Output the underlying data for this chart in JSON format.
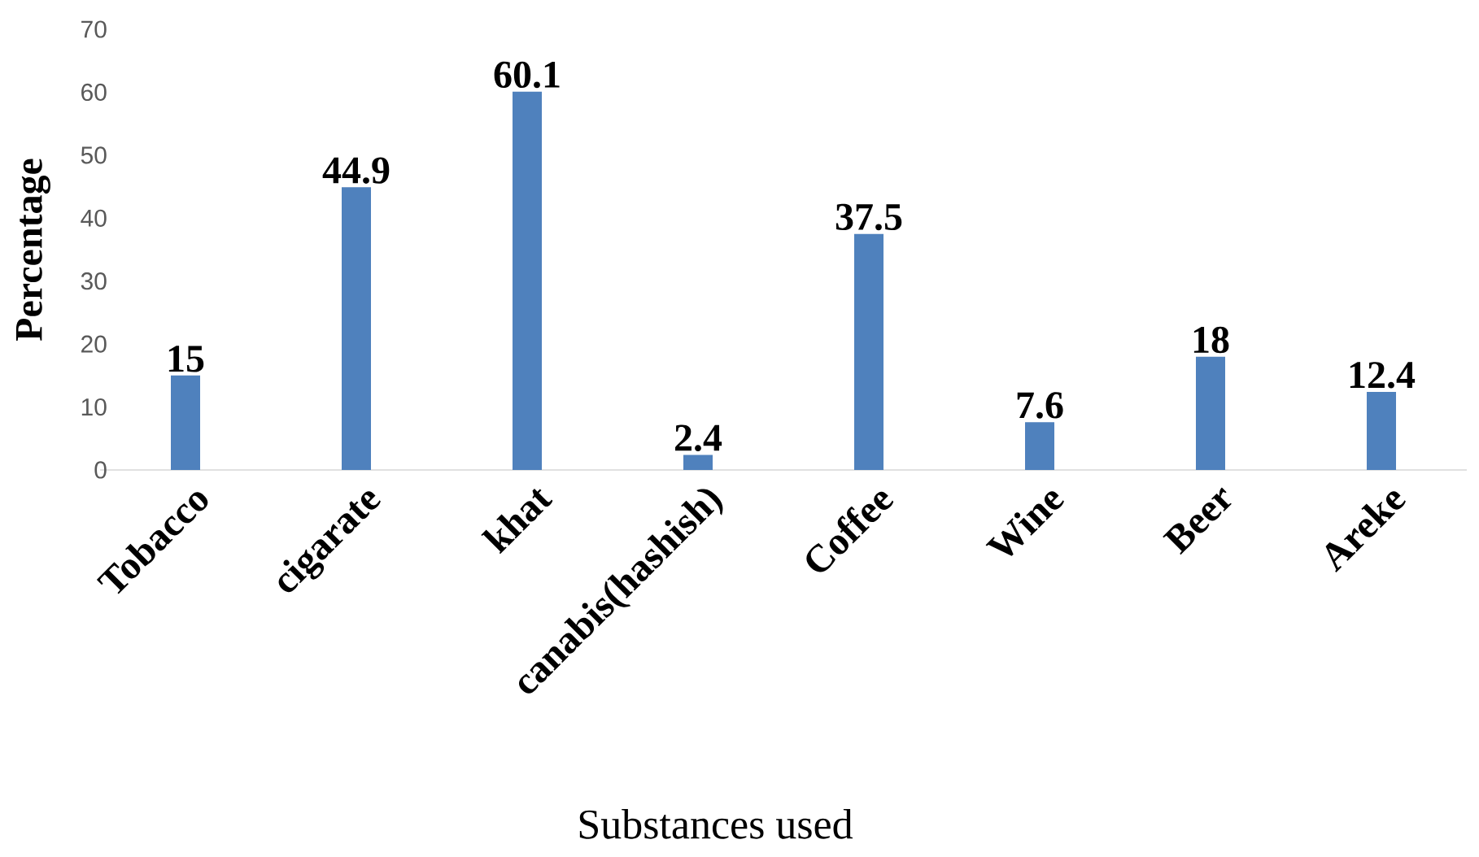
{
  "chart_data": {
    "type": "bar",
    "xlabel": "Substances used",
    "ylabel": "Percentage",
    "categories": [
      "Tobacco",
      "cigarate",
      "khat",
      "canabis(hashish)",
      "Coffee",
      "Wine",
      "Beer",
      "Areke"
    ],
    "values": [
      15,
      44.9,
      60.1,
      2.4,
      37.5,
      7.6,
      18,
      12.4
    ],
    "color": "#4f81bd",
    "ylim": [
      0,
      70
    ],
    "yticks": [
      0,
      10,
      20,
      30,
      40,
      50,
      60,
      70
    ],
    "data_labels": true,
    "grid": false
  }
}
